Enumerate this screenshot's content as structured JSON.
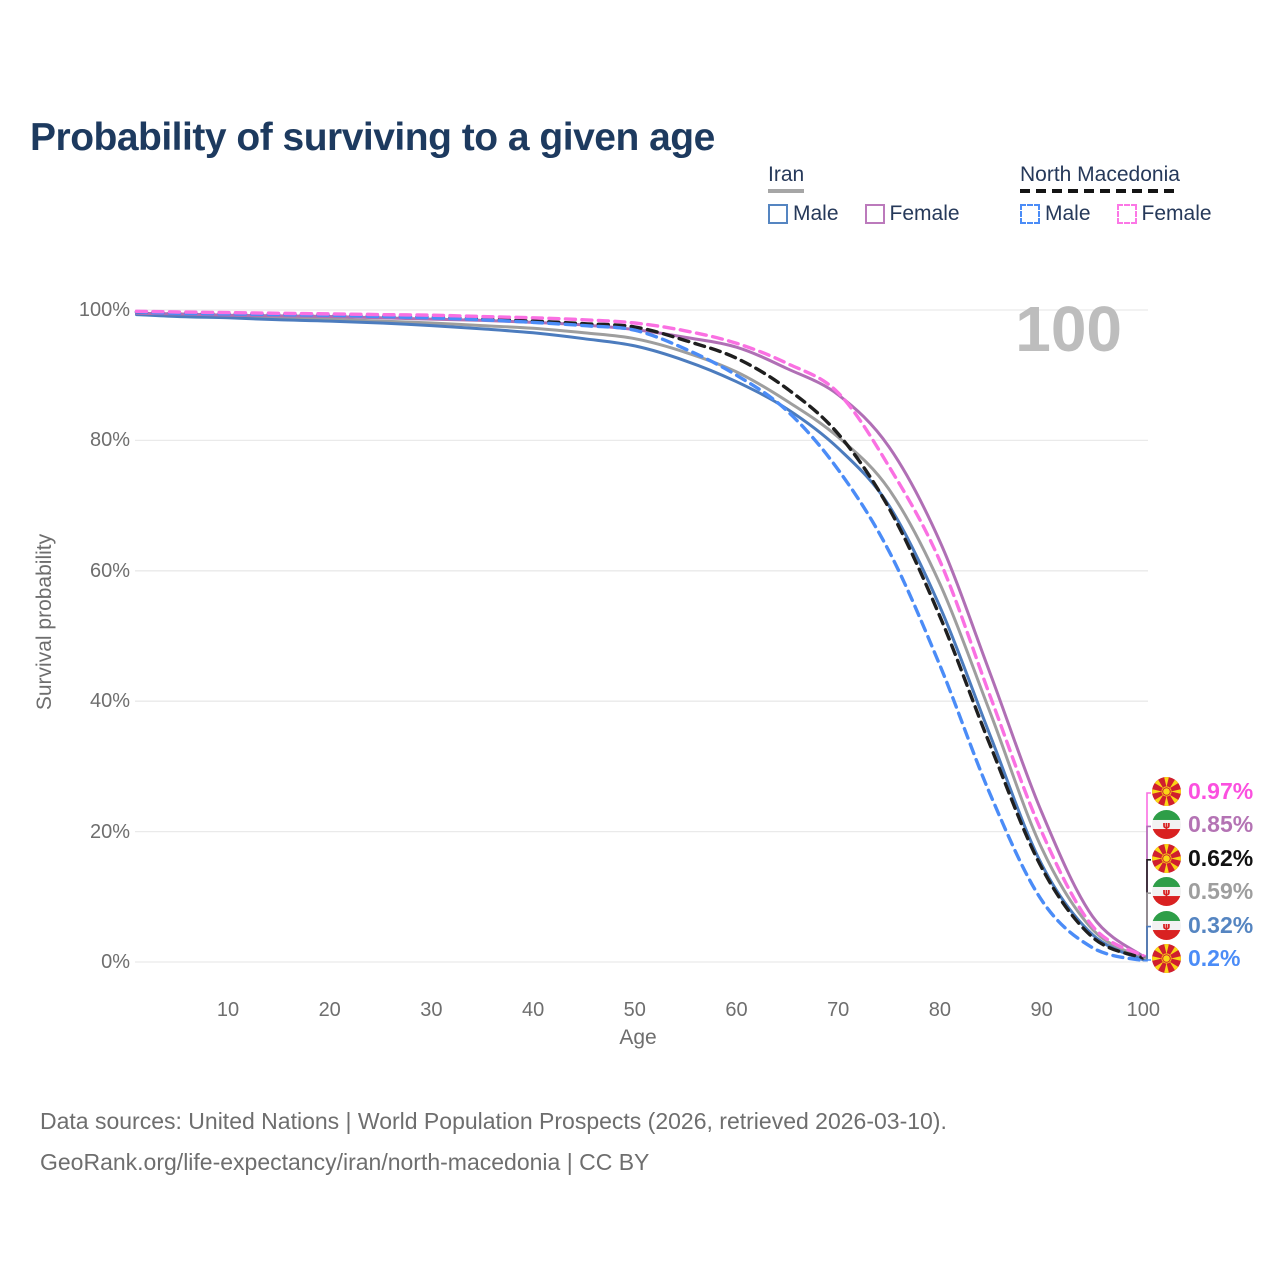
{
  "title": "Probability of surviving to a given age",
  "legend": {
    "groups": [
      {
        "label": "Iran",
        "line_style": "solid",
        "line_color": "#a6a6a6",
        "items": [
          {
            "label": "Male",
            "color": "#5585c1",
            "dashed": false
          },
          {
            "label": "Female",
            "color": "#bc7abc",
            "dashed": false
          }
        ]
      },
      {
        "label": "North Macedonia",
        "line_style": "dashed",
        "line_color": "#141414",
        "items": [
          {
            "label": "Male",
            "color": "#4b8cf7",
            "dashed": true
          },
          {
            "label": "Female",
            "color": "#fc77e6",
            "dashed": true
          }
        ]
      }
    ]
  },
  "chart_data": {
    "type": "line",
    "title": "Probability of surviving to a given age",
    "xlabel": "Age",
    "ylabel": "Survival probability",
    "watermark": "100",
    "xlim": [
      0,
      100
    ],
    "ylim": [
      0,
      100
    ],
    "grid": "horizontal",
    "xticks": [
      10,
      20,
      30,
      40,
      50,
      60,
      70,
      80,
      90,
      100
    ],
    "ytick_values": [
      0,
      20,
      40,
      60,
      80,
      100
    ],
    "ytick_labels": [
      "0%",
      "20%",
      "40%",
      "60%",
      "80%",
      "100%"
    ],
    "x": [
      1,
      5,
      10,
      15,
      20,
      25,
      30,
      35,
      40,
      45,
      50,
      55,
      60,
      65,
      70,
      75,
      80,
      85,
      90,
      95,
      100
    ],
    "series": [
      {
        "name": "Iran",
        "flag": "iran",
        "color": "#9e9e9e",
        "dashed": false,
        "values": [
          99.4,
          99.2,
          99.0,
          98.8,
          98.6,
          98.3,
          98.0,
          97.6,
          97.2,
          96.5,
          95.6,
          93.5,
          90.5,
          86.0,
          80.5,
          72.5,
          58.0,
          38.0,
          17.5,
          5.0,
          0.59
        ],
        "end_value": 0.59,
        "end_label": "0.59%",
        "label_color": "#9e9e9e"
      },
      {
        "name": "Iran Male",
        "flag": "iran",
        "color": "#4c7cbe",
        "dashed": false,
        "values": [
          99.3,
          99.0,
          98.8,
          98.5,
          98.3,
          98.0,
          97.6,
          97.1,
          96.5,
          95.6,
          94.5,
          92.2,
          89.0,
          84.8,
          78.8,
          70.0,
          54.5,
          34.5,
          15.0,
          4.2,
          0.32
        ],
        "end_value": 0.32,
        "end_label": "0.32%",
        "label_color": "#5585c1"
      },
      {
        "name": "Iran Female",
        "flag": "iran",
        "color": "#b06fb5",
        "dashed": false,
        "values": [
          99.5,
          99.4,
          99.2,
          99.1,
          99.0,
          98.8,
          98.6,
          98.4,
          98.1,
          97.7,
          97.0,
          95.8,
          94.3,
          91.0,
          87.0,
          79.0,
          64.5,
          44.0,
          23.0,
          7.0,
          0.85
        ],
        "end_value": 0.85,
        "end_label": "0.85%",
        "label_color": "#b473b4"
      },
      {
        "name": "North Macedonia",
        "flag": "north-macedonia",
        "color": "#1f1f1f",
        "dashed": true,
        "values": [
          99.7,
          99.6,
          99.5,
          99.4,
          99.3,
          99.1,
          98.9,
          98.6,
          98.3,
          97.9,
          97.4,
          95.3,
          92.6,
          87.9,
          81.0,
          69.6,
          53.0,
          33.0,
          14.5,
          3.8,
          0.62
        ],
        "end_value": 0.62,
        "end_label": "0.62%",
        "label_color": "#111111"
      },
      {
        "name": "North Macedonia Male",
        "flag": "north-macedonia",
        "color": "#4b8cf7",
        "dashed": true,
        "values": [
          99.7,
          99.5,
          99.4,
          99.3,
          99.2,
          99.0,
          98.8,
          98.5,
          98.1,
          97.6,
          96.9,
          94.0,
          90.0,
          84.5,
          75.5,
          63.0,
          45.5,
          25.5,
          9.5,
          2.2,
          0.2
        ],
        "end_value": 0.2,
        "end_label": "0.2%",
        "label_color": "#4b8cf7"
      },
      {
        "name": "North Macedonia Female",
        "flag": "north-macedonia",
        "color": "#fa70e2",
        "dashed": true,
        "values": [
          99.8,
          99.7,
          99.6,
          99.5,
          99.4,
          99.3,
          99.2,
          99.0,
          98.8,
          98.5,
          98.0,
          96.8,
          94.9,
          91.8,
          87.3,
          76.0,
          61.5,
          40.5,
          20.0,
          5.5,
          0.97
        ],
        "end_value": 0.97,
        "end_label": "0.97%",
        "label_color": "#fb50df"
      }
    ]
  },
  "footer": {
    "line1": "Data sources: United Nations | World Population Prospects (2026, retrieved 2026-03-10).",
    "line2": "GeoRank.org/life-expectancy/iran/north-macedonia | CC BY"
  }
}
